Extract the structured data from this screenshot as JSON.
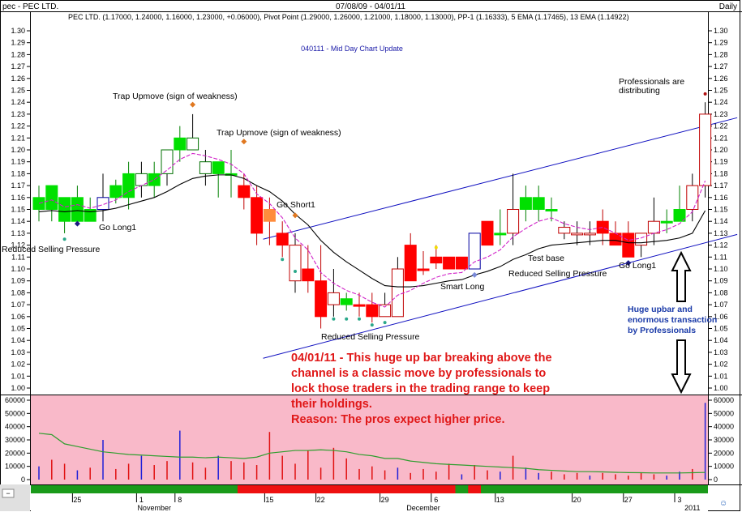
{
  "header": {
    "symbol": "pec - PEC LTD.",
    "date_range": "07/08/09 - 04/01/11",
    "interval": "Daily",
    "legend": "PEC LTD. (1.17000, 1.24000, 1.16000, 1.23000, +0.06000), Pivot Point (1.29000, 1.26000, 1.21000, 1.18000, 1.13000), PP-1 (1.16333), 5 EMA (1.17465), 13 EMA (1.14922)",
    "subtitle": "040111 - Mid Day Chart Update"
  },
  "colors": {
    "up_bar": "#00e000",
    "down_bar": "#ff0000",
    "down_light": "#ff8c3c",
    "ema5": "#d020c8",
    "ema13": "#000000",
    "channel": "#1010c0",
    "volume_bg": "#f9b9c9",
    "volume_avg": "#2e9e2e",
    "annotation_red": "#e01818",
    "annotation_blue": "#1a3aa8"
  },
  "annotations": {
    "trap1": "Trap Upmove (sign of weakness)",
    "trap2": "Trap Upmove (sign of weakness)",
    "go_short": "Go Short1",
    "go_long_left": "Go Long1",
    "go_long_right": "Go Long1",
    "reduced_left": "Reduced Selling Pressure",
    "reduced_mid": "Reduced Selling Pressure",
    "reduced_right": "Reduced Selling Pressure",
    "smart_long": "Smart Long",
    "test_base": "Test base",
    "pros_line1": "Professionals are",
    "pros_line2": "distributing",
    "huge_line1": "Huge upbar and",
    "huge_line2": "enormous transaction",
    "huge_line3": "by Professionals",
    "comment_lines": [
      "04/01/11 - This huge up bar breaking above the",
      "channel is a classic move by professionals to",
      "lock those traders in the trading range to keep",
      "their holdings.",
      "Reason: The pros expect higher price."
    ]
  },
  "chart_data": {
    "type": "candlestick",
    "price_axis": {
      "ylim": [
        0.995,
        1.305
      ],
      "ticks": [
        "1.30",
        "1.29",
        "1.28",
        "1.27",
        "1.26",
        "1.25",
        "1.24",
        "1.23",
        "1.22",
        "1.21",
        "1.20",
        "1.19",
        "1.18",
        "1.17",
        "1.16",
        "1.15",
        "1.14",
        "1.13",
        "1.12",
        "1.11",
        "1.10",
        "1.09",
        "1.08",
        "1.07",
        "1.06",
        "1.05",
        "1.04",
        "1.03",
        "1.02",
        "1.01",
        "1.00"
      ]
    },
    "volume_axis": {
      "ylim": [
        0,
        64000
      ],
      "ticks": [
        "60000",
        "50000",
        "40000",
        "30000",
        "20000",
        "10000",
        "0"
      ]
    },
    "x_labels": [
      {
        "i": 3,
        "text": "25"
      },
      {
        "i": 8,
        "text": "1"
      },
      {
        "i": 11,
        "text": "8"
      },
      {
        "i": 18,
        "text": "15"
      },
      {
        "i": 22,
        "text": "22"
      },
      {
        "i": 27,
        "text": "29"
      },
      {
        "i": 31,
        "text": "6"
      },
      {
        "i": 36,
        "text": "13"
      },
      {
        "i": 42,
        "text": "20"
      },
      {
        "i": 46,
        "text": "27"
      },
      {
        "i": 50,
        "text": "3"
      }
    ],
    "month_labels": [
      {
        "i": 9,
        "text": "November"
      },
      {
        "i": 30,
        "text": "December"
      },
      {
        "i": 51,
        "text": "2011"
      }
    ],
    "candles": [
      {
        "o": 1.15,
        "h": 1.17,
        "l": 1.14,
        "c": 1.16
      },
      {
        "o": 1.15,
        "h": 1.17,
        "l": 1.14,
        "c": 1.17
      },
      {
        "o": 1.16,
        "h": 1.16,
        "l": 1.13,
        "c": 1.14
      },
      {
        "o": 1.14,
        "h": 1.17,
        "l": 1.14,
        "c": 1.16
      },
      {
        "o": 1.14,
        "h": 1.16,
        "l": 1.14,
        "c": 1.15
      },
      {
        "o": 1.15,
        "h": 1.18,
        "l": 1.14,
        "c": 1.16
      },
      {
        "o": 1.16,
        "h": 1.175,
        "l": 1.155,
        "c": 1.17
      },
      {
        "o": 1.16,
        "h": 1.19,
        "l": 1.15,
        "c": 1.18
      },
      {
        "o": 1.17,
        "h": 1.19,
        "l": 1.16,
        "c": 1.18
      },
      {
        "o": 1.17,
        "h": 1.19,
        "l": 1.16,
        "c": 1.18
      },
      {
        "o": 1.18,
        "h": 1.2,
        "l": 1.17,
        "c": 1.2
      },
      {
        "o": 1.2,
        "h": 1.22,
        "l": 1.19,
        "c": 1.21
      },
      {
        "o": 1.2,
        "h": 1.23,
        "l": 1.2,
        "c": 1.21
      },
      {
        "o": 1.18,
        "h": 1.2,
        "l": 1.17,
        "c": 1.19
      },
      {
        "o": 1.18,
        "h": 1.19,
        "l": 1.16,
        "c": 1.19
      },
      {
        "o": 1.18,
        "h": 1.2,
        "l": 1.16,
        "c": 1.18
      },
      {
        "o": 1.17,
        "h": 1.18,
        "l": 1.15,
        "c": 1.16
      },
      {
        "o": 1.16,
        "h": 1.17,
        "l": 1.12,
        "c": 1.13
      },
      {
        "o": 1.15,
        "h": 1.16,
        "l": 1.12,
        "c": 1.14
      },
      {
        "o": 1.13,
        "h": 1.14,
        "l": 1.11,
        "c": 1.12
      },
      {
        "o": 1.12,
        "h": 1.13,
        "l": 1.08,
        "c": 1.09
      },
      {
        "o": 1.09,
        "h": 1.12,
        "l": 1.08,
        "c": 1.1
      },
      {
        "o": 1.09,
        "h": 1.12,
        "l": 1.05,
        "c": 1.06
      },
      {
        "o": 1.08,
        "h": 1.1,
        "l": 1.06,
        "c": 1.07
      },
      {
        "o": 1.075,
        "h": 1.08,
        "l": 1.065,
        "c": 1.07
      },
      {
        "o": 1.07,
        "h": 1.08,
        "l": 1.06,
        "c": 1.07
      },
      {
        "o": 1.07,
        "h": 1.08,
        "l": 1.055,
        "c": 1.06
      },
      {
        "o": 1.07,
        "h": 1.08,
        "l": 1.06,
        "c": 1.06
      },
      {
        "o": 1.06,
        "h": 1.11,
        "l": 1.06,
        "c": 1.1
      },
      {
        "o": 1.12,
        "h": 1.13,
        "l": 1.09,
        "c": 1.09
      },
      {
        "o": 1.1,
        "h": 1.115,
        "l": 1.095,
        "c": 1.1
      },
      {
        "o": 1.11,
        "h": 1.12,
        "l": 1.1,
        "c": 1.105
      },
      {
        "o": 1.11,
        "h": 1.11,
        "l": 1.1,
        "c": 1.1
      },
      {
        "o": 1.11,
        "h": 1.11,
        "l": 1.1,
        "c": 1.1
      },
      {
        "o": 1.1,
        "h": 1.13,
        "l": 1.1,
        "c": 1.13
      },
      {
        "o": 1.14,
        "h": 1.14,
        "l": 1.12,
        "c": 1.12
      },
      {
        "o": 1.13,
        "h": 1.15,
        "l": 1.12,
        "c": 1.13
      },
      {
        "o": 1.13,
        "h": 1.18,
        "l": 1.12,
        "c": 1.15
      },
      {
        "o": 1.16,
        "h": 1.17,
        "l": 1.14,
        "c": 1.15
      },
      {
        "o": 1.16,
        "h": 1.17,
        "l": 1.14,
        "c": 1.15
      },
      {
        "o": 1.15,
        "h": 1.16,
        "l": 1.14,
        "c": 1.15
      },
      {
        "o": 1.135,
        "h": 1.14,
        "l": 1.125,
        "c": 1.13
      },
      {
        "o": 1.13,
        "h": 1.14,
        "l": 1.12,
        "c": 1.13
      },
      {
        "o": 1.13,
        "h": 1.14,
        "l": 1.12,
        "c": 1.13
      },
      {
        "o": 1.13,
        "h": 1.15,
        "l": 1.12,
        "c": 1.14
      },
      {
        "o": 1.13,
        "h": 1.14,
        "l": 1.12,
        "c": 1.12
      },
      {
        "o": 1.13,
        "h": 1.14,
        "l": 1.11,
        "c": 1.11
      },
      {
        "o": 1.12,
        "h": 1.13,
        "l": 1.11,
        "c": 1.13
      },
      {
        "o": 1.13,
        "h": 1.16,
        "l": 1.12,
        "c": 1.14
      },
      {
        "o": 1.14,
        "h": 1.15,
        "l": 1.13,
        "c": 1.14
      },
      {
        "o": 1.14,
        "h": 1.17,
        "l": 1.14,
        "c": 1.15
      },
      {
        "o": 1.15,
        "h": 1.18,
        "l": 1.14,
        "c": 1.17
      },
      {
        "o": 1.17,
        "h": 1.24,
        "l": 1.16,
        "c": 1.23
      }
    ],
    "candle_style": [
      "up",
      "up",
      "up",
      "up",
      "up",
      "hollow",
      "up",
      "up",
      "hollow",
      "up",
      "hollow",
      "up",
      "hollow",
      "hollow",
      "up",
      "up",
      "down",
      "down",
      "downlight",
      "down",
      "hollow",
      "down",
      "down",
      "hollow",
      "up",
      "down",
      "down",
      "hollow",
      "hollow",
      "down",
      "down",
      "down",
      "down",
      "down",
      "hollow",
      "down",
      "up",
      "hollow",
      "up",
      "up",
      "up",
      "hollow",
      "hollow",
      "hollow",
      "down",
      "down",
      "down",
      "hollow",
      "hollow",
      "up",
      "up",
      "hollow",
      "hollow"
    ],
    "ema5": [
      1.155,
      1.158,
      1.152,
      1.154,
      1.151,
      1.154,
      1.158,
      1.165,
      1.17,
      1.175,
      1.183,
      1.192,
      1.197,
      1.195,
      1.192,
      1.188,
      1.18,
      1.163,
      1.155,
      1.143,
      1.126,
      1.116,
      1.097,
      1.088,
      1.082,
      1.078,
      1.072,
      1.068,
      1.078,
      1.082,
      1.088,
      1.093,
      1.096,
      1.097,
      1.106,
      1.11,
      1.116,
      1.127,
      1.134,
      1.14,
      1.143,
      1.138,
      1.135,
      1.133,
      1.135,
      1.13,
      1.124,
      1.126,
      1.13,
      1.133,
      1.138,
      1.148,
      1.174
    ],
    "ema13": [
      1.148,
      1.149,
      1.148,
      1.149,
      1.148,
      1.149,
      1.151,
      1.154,
      1.157,
      1.16,
      1.165,
      1.171,
      1.176,
      1.178,
      1.179,
      1.179,
      1.176,
      1.17,
      1.165,
      1.157,
      1.146,
      1.137,
      1.124,
      1.114,
      1.106,
      1.099,
      1.092,
      1.086,
      1.085,
      1.085,
      1.086,
      1.088,
      1.09,
      1.091,
      1.095,
      1.098,
      1.102,
      1.108,
      1.112,
      1.117,
      1.12,
      1.121,
      1.122,
      1.123,
      1.124,
      1.124,
      1.122,
      1.122,
      1.123,
      1.124,
      1.126,
      1.13,
      1.149
    ],
    "channel_upper": [
      [
        17.5,
        1.125
      ],
      [
        54.5,
        1.227
      ]
    ],
    "channel_lower": [
      [
        17.5,
        1.025
      ],
      [
        54.5,
        1.129
      ]
    ],
    "dots": [
      {
        "i": 2,
        "y": 1.125,
        "color": "#2aa88a"
      },
      {
        "i": 3,
        "y": 1.138,
        "color": "#1a1a80"
      },
      {
        "i": 12,
        "y": 1.238,
        "color": "#e07820"
      },
      {
        "i": 16,
        "y": 1.207,
        "color": "#e07820"
      },
      {
        "i": 19,
        "y": 1.108,
        "color": "#2aa88a"
      },
      {
        "i": 20,
        "y": 1.145,
        "color": "#e07820"
      },
      {
        "i": 20,
        "y": 1.098,
        "color": "#2aa88a"
      },
      {
        "i": 23,
        "y": 1.058,
        "color": "#2aa88a"
      },
      {
        "i": 24,
        "y": 1.058,
        "color": "#2aa88a"
      },
      {
        "i": 25,
        "y": 1.058,
        "color": "#2aa88a"
      },
      {
        "i": 26,
        "y": 1.053,
        "color": "#2aa88a"
      },
      {
        "i": 27,
        "y": 1.055,
        "color": "#2aa88a"
      },
      {
        "i": 31,
        "y": 1.118,
        "color": "#f2e000"
      },
      {
        "i": 34,
        "y": 1.095,
        "color": "#7a8ad8"
      },
      {
        "i": 46,
        "y": 1.105,
        "color": "#1a1a80"
      },
      {
        "i": 52,
        "y": 1.247,
        "color": "#b01010"
      }
    ],
    "volume": [
      10000,
      15000,
      12000,
      7000,
      9000,
      30000,
      8000,
      12000,
      18000,
      11000,
      14000,
      37000,
      13000,
      9000,
      18000,
      14000,
      13000,
      11000,
      36000,
      18000,
      12000,
      22000,
      9000,
      24000,
      16000,
      8000,
      10000,
      7000,
      9000,
      5000,
      8000,
      6000,
      12000,
      4000,
      11000,
      7000,
      6000,
      18000,
      9000,
      5000,
      6000,
      4000,
      5000,
      3000,
      5000,
      4000,
      3000,
      5000,
      4000,
      3000,
      6000,
      8000,
      58000
    ],
    "volume_colors": [
      "blue",
      "red",
      "red",
      "blue",
      "red",
      "blue",
      "red",
      "red",
      "blue",
      "red",
      "red",
      "blue",
      "red",
      "red",
      "blue",
      "red",
      "red",
      "red",
      "red",
      "red",
      "red",
      "red",
      "red",
      "red",
      "red",
      "red",
      "red",
      "red",
      "blue",
      "red",
      "red",
      "red",
      "red",
      "blue",
      "red",
      "red",
      "blue",
      "red",
      "blue",
      "blue",
      "red",
      "red",
      "red",
      "blue",
      "red",
      "red",
      "red",
      "red",
      "red",
      "blue",
      "blue",
      "red",
      "blue"
    ],
    "volume_avg": [
      35000,
      34000,
      27000,
      25000,
      23000,
      21000,
      20000,
      19000,
      18500,
      18000,
      17500,
      17000,
      17000,
      16500,
      17000,
      16500,
      16000,
      17000,
      20000,
      21000,
      22000,
      22000,
      22500,
      22000,
      21000,
      19000,
      18000,
      16000,
      16000,
      14000,
      13000,
      12000,
      11500,
      11000,
      10500,
      10000,
      9500,
      9000,
      8500,
      7500,
      7000,
      6500,
      6000,
      6000,
      5800,
      5500,
      5300,
      5200,
      5000,
      5000,
      5000,
      5200,
      5400
    ],
    "signal_bar": [
      {
        "from": 0,
        "to": 15,
        "color": "#1a9a1a"
      },
      {
        "from": 16,
        "to": 32,
        "color": "#ee1010"
      },
      {
        "from": 33,
        "to": 33,
        "color": "#1a9a1a"
      },
      {
        "from": 34,
        "to": 34,
        "color": "#ee1010"
      },
      {
        "from": 35,
        "to": 52,
        "color": "#1a9a1a"
      }
    ]
  }
}
